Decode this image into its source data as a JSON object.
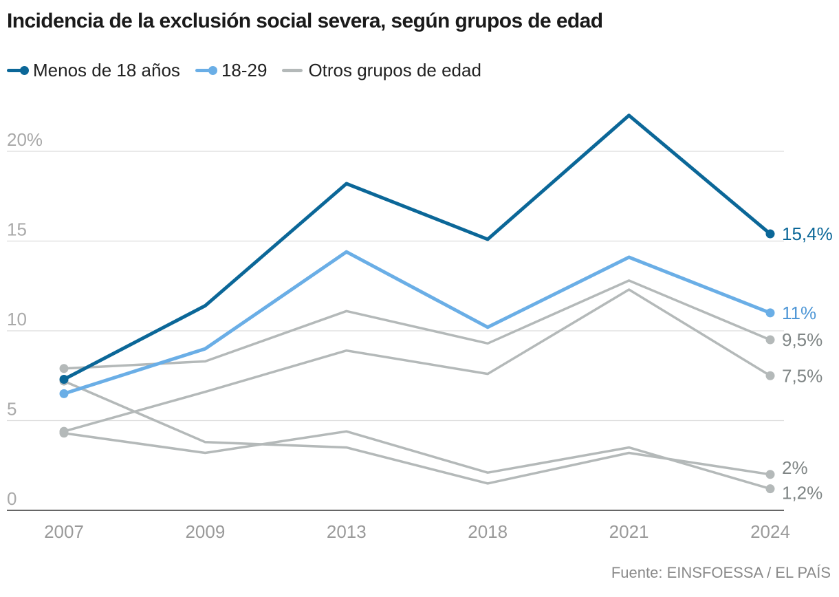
{
  "title": "Incidencia de la exclusión social severa, según grupos de edad",
  "source": "Fuente: EINSFOESSA / EL PAÍS",
  "legend": [
    {
      "label": "Menos de 18 años",
      "color": "#0b6798",
      "marker": true
    },
    {
      "label": "18-29",
      "color": "#6aaee6",
      "marker": true
    },
    {
      "label": "Otros grupos de edad",
      "color": "#b4b9b9",
      "marker": false
    }
  ],
  "chart_data": {
    "type": "line",
    "title": "Incidencia de la exclusión social severa, según grupos de edad",
    "xlabel": "",
    "ylabel": "",
    "categories": [
      "2007",
      "2009",
      "2013",
      "2018",
      "2021",
      "2024"
    ],
    "ylim": [
      0,
      22
    ],
    "yticks": [
      0,
      5,
      10,
      15,
      20
    ],
    "ytick_labels": [
      "0",
      "5",
      "10",
      "15",
      "20%"
    ],
    "grid": true,
    "legend_position": "top-left",
    "series": [
      {
        "name": "Otros grupos de edad 1",
        "color": "#b4b9b9",
        "width": 3.5,
        "values": [
          7.9,
          8.3,
          11.1,
          9.3,
          12.8,
          9.5
        ],
        "end_label": "9,5%",
        "end_label_color": "#7f8585"
      },
      {
        "name": "Otros grupos de edad 2",
        "color": "#b4b9b9",
        "width": 3.5,
        "values": [
          4.4,
          6.6,
          8.9,
          7.6,
          12.3,
          7.5
        ],
        "end_label": "7,5%",
        "end_label_color": "#7f8585"
      },
      {
        "name": "Otros grupos de edad 3",
        "color": "#b4b9b9",
        "width": 3.5,
        "values": [
          7.2,
          3.8,
          3.5,
          1.5,
          3.2,
          2.0
        ],
        "end_label": "2%",
        "end_label_color": "#7f8585"
      },
      {
        "name": "Otros grupos de edad 4",
        "color": "#b4b9b9",
        "width": 3.5,
        "values": [
          4.3,
          3.2,
          4.4,
          2.1,
          3.5,
          1.2
        ],
        "end_label": "1,2%",
        "end_label_color": "#7f8585"
      },
      {
        "name": "18-29",
        "color": "#6aaee6",
        "width": 5,
        "values": [
          6.5,
          9.0,
          14.4,
          10.2,
          14.1,
          11.0
        ],
        "end_label": "11%",
        "end_label_color": "#4f97d6"
      },
      {
        "name": "Menos de 18 años",
        "color": "#0b6798",
        "width": 5,
        "values": [
          7.3,
          11.4,
          18.2,
          15.1,
          22.0,
          15.4
        ],
        "end_label": "15,4%",
        "end_label_color": "#0b6798"
      }
    ]
  }
}
